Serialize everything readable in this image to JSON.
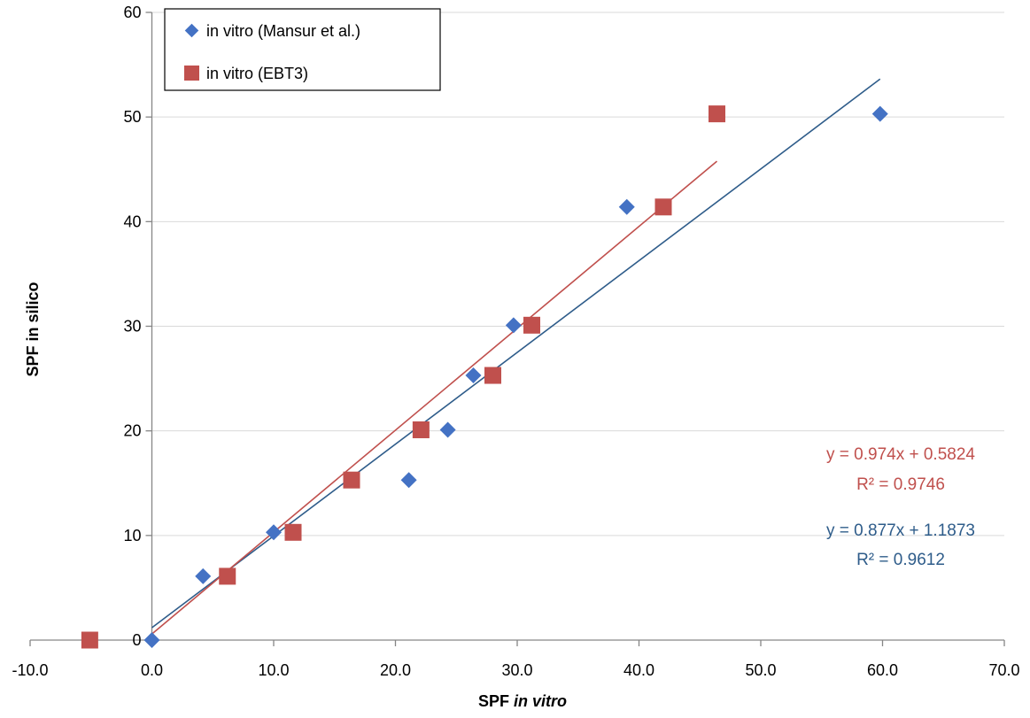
{
  "chart_data": {
    "type": "scatter",
    "xlabel_prefix": "SPF ",
    "xlabel_italic": "in vitro",
    "ylabel": "SPF in silico",
    "xlim": [
      -10,
      70
    ],
    "ylim": [
      0,
      60
    ],
    "x_ticks": [
      "-10.0",
      "0.0",
      "10.0",
      "20.0",
      "30.0",
      "40.0",
      "50.0",
      "60.0",
      "70.0"
    ],
    "y_ticks": [
      "0",
      "10",
      "20",
      "30",
      "40",
      "50",
      "60"
    ],
    "x_tick_values": [
      -10,
      0,
      10,
      20,
      30,
      40,
      50,
      60,
      70
    ],
    "y_tick_values": [
      0,
      10,
      20,
      30,
      40,
      50,
      60
    ],
    "grid": "horizontal",
    "legend_position": "top-left",
    "series": [
      {
        "name": "in vitro (Mansur et al.)",
        "marker": "diamond",
        "color": "#4472C4",
        "line_color": "#2E5C8A",
        "points": [
          [
            0.0,
            0.0
          ],
          [
            4.2,
            6.1
          ],
          [
            10.0,
            10.3
          ],
          [
            21.1,
            15.3
          ],
          [
            24.3,
            20.1
          ],
          [
            26.4,
            25.3
          ],
          [
            29.7,
            30.1
          ],
          [
            39.0,
            41.4
          ],
          [
            59.8,
            50.3
          ]
        ],
        "trendline": {
          "slope": 0.877,
          "intercept": 1.1873,
          "x_range": [
            0.0,
            59.8
          ]
        },
        "equation": "y = 0.877x + 1.1873",
        "r2": "R² = 0.9612"
      },
      {
        "name": "in vitro (EBT3)",
        "marker": "square",
        "color": "#C0504D",
        "line_color": "#C0504D",
        "points": [
          [
            -5.1,
            0.0
          ],
          [
            6.2,
            6.1
          ],
          [
            11.6,
            10.3
          ],
          [
            16.4,
            15.3
          ],
          [
            22.1,
            20.1
          ],
          [
            28.0,
            25.3
          ],
          [
            31.2,
            30.1
          ],
          [
            42.0,
            41.4
          ],
          [
            46.4,
            50.3
          ]
        ],
        "trendline": {
          "slope": 0.974,
          "intercept": 0.5824,
          "x_range": [
            0.0,
            46.4
          ]
        },
        "equation": "y = 0.974x + 0.5824",
        "r2": "R² = 0.9746"
      }
    ]
  }
}
